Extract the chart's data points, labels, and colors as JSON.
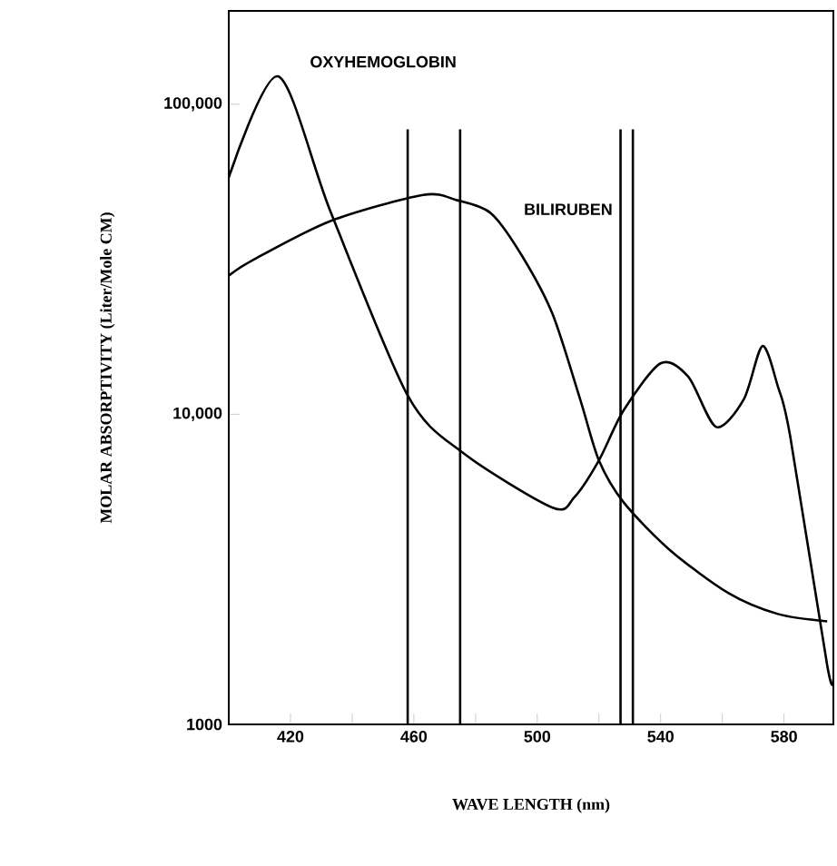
{
  "chart_data": {
    "type": "line",
    "xlabel": "WAVE LENGTH (nm)",
    "ylabel": "MOLAR ABSORPTIVITY (Liter/Mole CM)",
    "log": "y",
    "marker": "none",
    "line_style": "solid",
    "xlim": [
      400,
      596
    ],
    "ylim": [
      1000,
      200000
    ],
    "xticks": [
      420,
      {
        "value": 440,
        "label": null
      },
      460,
      {
        "value": 480,
        "label": null
      },
      500,
      {
        "value": 520,
        "label": null
      },
      540,
      {
        "value": 560,
        "label": null
      },
      580
    ],
    "yticks": [
      1000,
      {
        "value": 10000,
        "label": "10,000"
      },
      {
        "value": 100000,
        "label": "100,000"
      }
    ],
    "series": [
      {
        "name": "OXYHEMOGLOBIN",
        "color": "#000000",
        "x": [
          400,
          416,
          433,
          458,
          476,
          505,
          512,
          520,
          528,
          540,
          549,
          558,
          567,
          573,
          578,
          582,
          594,
          596
        ],
        "values": [
          58000,
          123000,
          45000,
          11500,
          7500,
          5000,
          5400,
          7100,
          10300,
          14600,
          13200,
          9100,
          11200,
          16600,
          12300,
          8500,
          1550,
          1400
        ]
      },
      {
        "name": "BILIRUBEN",
        "color": "#000000",
        "x": [
          400,
          408,
          433,
          463,
          474,
          485,
          495,
          505,
          514,
          520,
          528,
          543,
          562,
          578,
          594
        ],
        "values": [
          28000,
          31500,
          42000,
          51000,
          49000,
          44500,
          32500,
          21000,
          11100,
          7100,
          5200,
          3650,
          2650,
          2270,
          2150
        ]
      },
      {
        "type": "line",
        "color": "#000000",
        "x": [
          458,
          458
        ],
        "values": [
          1000,
          83000
        ]
      },
      {
        "type": "line",
        "color": "#000000",
        "x": [
          475,
          475
        ],
        "values": [
          1000,
          83000
        ]
      },
      {
        "type": "line",
        "color": "#000000",
        "x": [
          527,
          527
        ],
        "values": [
          1000,
          83000
        ]
      },
      {
        "type": "line",
        "color": "#000000",
        "x": [
          531,
          531
        ],
        "values": [
          1000,
          83000
        ]
      }
    ]
  }
}
